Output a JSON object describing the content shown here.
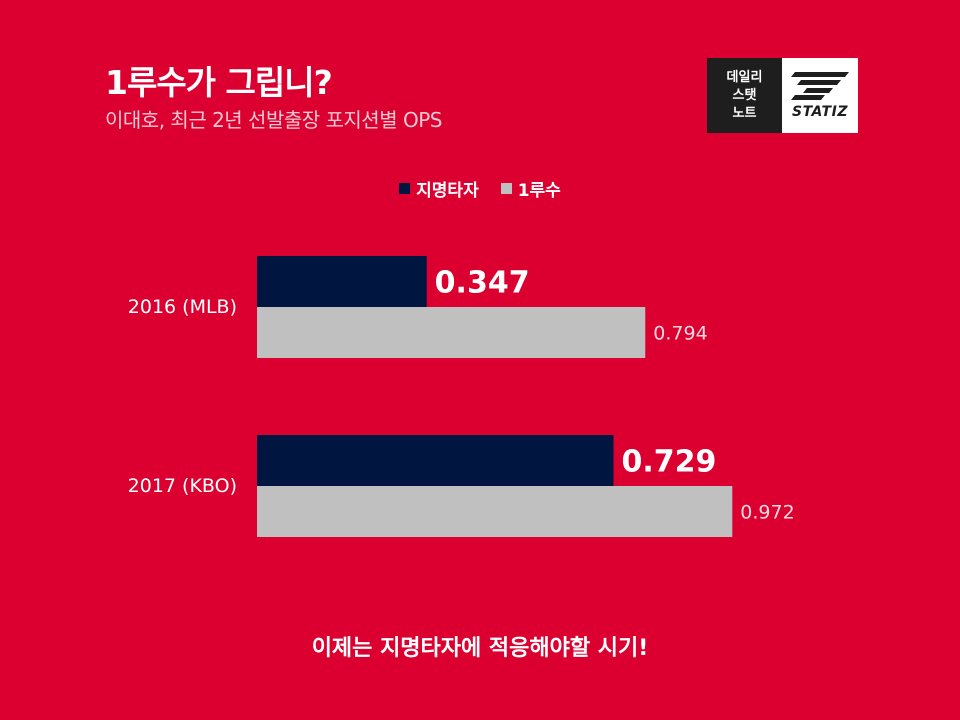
{
  "header": {
    "title": "1루수가 그립니?",
    "subtitle": "이대호, 최근 2년 선발출장 포지션별 OPS"
  },
  "logo": {
    "left_lines": [
      "데일리",
      "스탯",
      "노트"
    ],
    "right_text": "STATIZ"
  },
  "footer": {
    "text": "이제는 지명타자에 적응해야할 시기!"
  },
  "colors": {
    "background": "#db0030",
    "dh": "#001641",
    "first_base": "#c0c0c0"
  },
  "chart_data": {
    "type": "bar",
    "orientation": "horizontal",
    "categories": [
      "2016 (MLB)",
      "2017 (KBO)"
    ],
    "series": [
      {
        "name": "지명타자",
        "values": [
          0.347,
          0.729
        ],
        "labels": [
          "0.347",
          "0.729"
        ],
        "color": "#001641"
      },
      {
        "name": "1루수",
        "values": [
          0.794,
          0.972
        ],
        "labels": [
          "0.794",
          "0.972"
        ],
        "color": "#c0c0c0"
      }
    ],
    "title": "1루수가 그립니?",
    "subtitle": "이대호, 최근 2년 선발출장 포지션별 OPS",
    "legend_position": "top-center",
    "xlim": [
      0,
      1.0
    ],
    "grid": false
  }
}
